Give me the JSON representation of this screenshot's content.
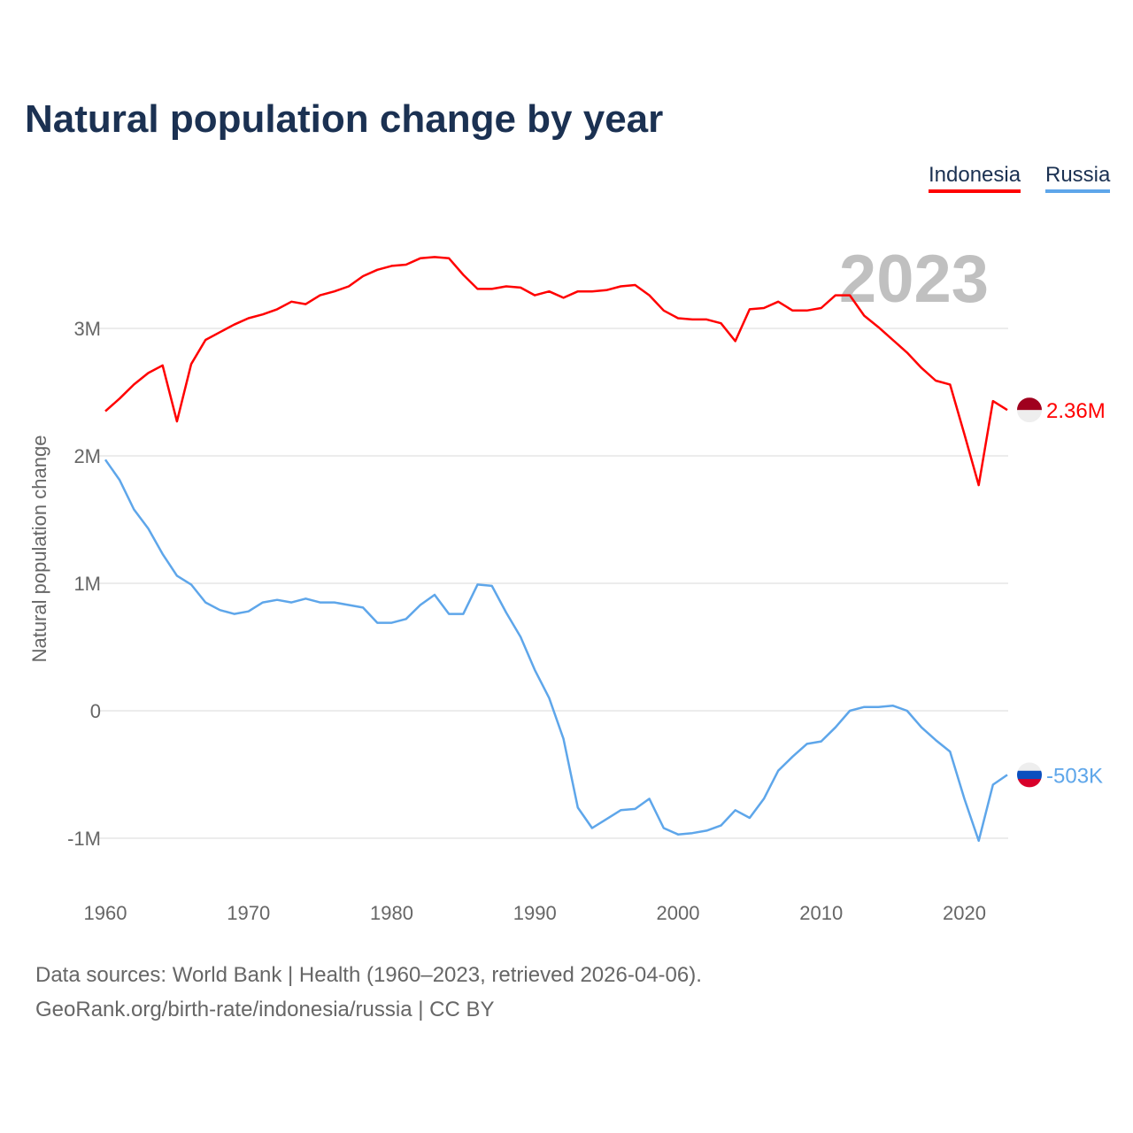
{
  "chart_data": {
    "type": "line",
    "title": "Natural population change by year",
    "xlabel": "",
    "ylabel": "Natural population change",
    "xlim": [
      1960,
      2023
    ],
    "ylim": [
      -1450000,
      3900000
    ],
    "grid": true,
    "legend_position": "top-right",
    "current_year_label": "2023",
    "x_ticks": [
      "1960",
      "1970",
      "1980",
      "1990",
      "2000",
      "2010",
      "2020"
    ],
    "y_ticks": [
      {
        "value": -1000000,
        "label": "-1M"
      },
      {
        "value": 0,
        "label": "0"
      },
      {
        "value": 1000000,
        "label": "1M"
      },
      {
        "value": 2000000,
        "label": "2M"
      },
      {
        "value": 3000000,
        "label": "3M"
      }
    ],
    "x": [
      1960,
      1961,
      1962,
      1963,
      1964,
      1965,
      1966,
      1967,
      1968,
      1969,
      1970,
      1971,
      1972,
      1973,
      1974,
      1975,
      1976,
      1977,
      1978,
      1979,
      1980,
      1981,
      1982,
      1983,
      1984,
      1985,
      1986,
      1987,
      1988,
      1989,
      1990,
      1991,
      1992,
      1993,
      1994,
      1995,
      1996,
      1997,
      1998,
      1999,
      2000,
      2001,
      2002,
      2003,
      2004,
      2005,
      2006,
      2007,
      2008,
      2009,
      2010,
      2011,
      2012,
      2013,
      2014,
      2015,
      2016,
      2017,
      2018,
      2019,
      2020,
      2021,
      2022,
      2023
    ],
    "series": [
      {
        "name": "Indonesia",
        "color": "#ff0000",
        "end_label": "2.36M",
        "values": [
          2.35,
          2.45,
          2.56,
          2.65,
          2.71,
          2.27,
          2.72,
          2.91,
          2.97,
          3.03,
          3.08,
          3.11,
          3.15,
          3.21,
          3.19,
          3.26,
          3.29,
          3.33,
          3.41,
          3.46,
          3.49,
          3.5,
          3.55,
          3.56,
          3.55,
          3.42,
          3.31,
          3.31,
          3.33,
          3.32,
          3.26,
          3.29,
          3.24,
          3.29,
          3.29,
          3.3,
          3.33,
          3.34,
          3.26,
          3.14,
          3.08,
          3.07,
          3.07,
          3.04,
          2.9,
          3.15,
          3.16,
          3.21,
          3.14,
          3.14,
          3.16,
          3.26,
          3.26,
          3.1,
          3.01,
          2.91,
          2.81,
          2.69,
          2.59,
          2.56,
          2.17,
          1.77,
          2.43,
          2.36
        ]
      },
      {
        "name": "Russia",
        "color": "#5ea6ea",
        "end_label": "-503K",
        "values": [
          1.97,
          1.81,
          1.58,
          1.43,
          1.23,
          1.06,
          0.99,
          0.85,
          0.79,
          0.76,
          0.78,
          0.85,
          0.87,
          0.85,
          0.88,
          0.85,
          0.85,
          0.83,
          0.81,
          0.69,
          0.69,
          0.72,
          0.83,
          0.91,
          0.76,
          0.76,
          0.99,
          0.98,
          0.77,
          0.58,
          0.32,
          0.1,
          -0.22,
          -0.76,
          -0.92,
          -0.85,
          -0.78,
          -0.77,
          -0.69,
          -0.92,
          -0.97,
          -0.96,
          -0.94,
          -0.9,
          -0.78,
          -0.84,
          -0.69,
          -0.47,
          -0.36,
          -0.26,
          -0.24,
          -0.13,
          0.0,
          0.03,
          0.03,
          0.04,
          0.0,
          -0.13,
          -0.23,
          -0.32,
          -0.69,
          -1.02,
          -0.58,
          -0.503
        ]
      }
    ],
    "values_unit": "millions"
  },
  "footer": {
    "line1": "Data sources: World Bank | Health (1960–2023, retrieved 2026-04-06).",
    "line2": "GeoRank.org/birth-rate/indonesia/russia | CC BY"
  }
}
